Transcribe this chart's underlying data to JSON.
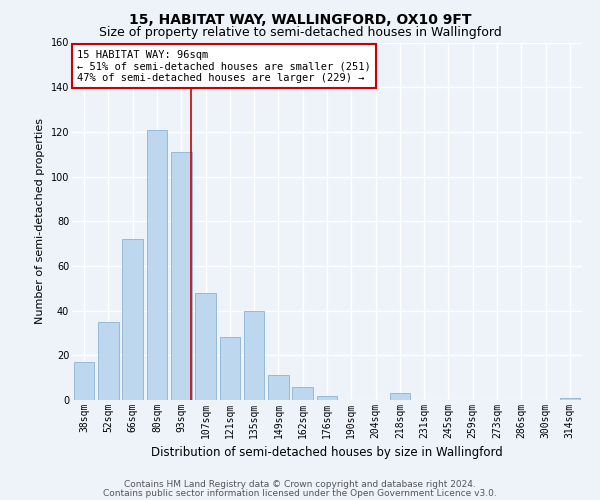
{
  "title1": "15, HABITAT WAY, WALLINGFORD, OX10 9FT",
  "title2": "Size of property relative to semi-detached houses in Wallingford",
  "xlabel": "Distribution of semi-detached houses by size in Wallingford",
  "ylabel": "Number of semi-detached properties",
  "categories": [
    "38sqm",
    "52sqm",
    "66sqm",
    "80sqm",
    "93sqm",
    "107sqm",
    "121sqm",
    "135sqm",
    "149sqm",
    "162sqm",
    "176sqm",
    "190sqm",
    "204sqm",
    "218sqm",
    "231sqm",
    "245sqm",
    "259sqm",
    "273sqm",
    "286sqm",
    "300sqm",
    "314sqm"
  ],
  "values": [
    17,
    35,
    72,
    121,
    111,
    48,
    28,
    40,
    11,
    6,
    2,
    0,
    0,
    3,
    0,
    0,
    0,
    0,
    0,
    0,
    1
  ],
  "bar_color": "#bdd7ee",
  "bar_edge_color": "#8ab4d4",
  "annotation_text": "15 HABITAT WAY: 96sqm\n← 51% of semi-detached houses are smaller (251)\n47% of semi-detached houses are larger (229) →",
  "box_color": "#ffffff",
  "box_edge_color": "#cc0000",
  "line_color": "#cc0000",
  "background_color": "#eef2f9",
  "grid_color": "#ffffff",
  "ylim": [
    0,
    160
  ],
  "yticks": [
    0,
    20,
    40,
    60,
    80,
    100,
    120,
    140,
    160
  ],
  "property_line_x": 4.42,
  "footer1": "Contains HM Land Registry data © Crown copyright and database right 2024.",
  "footer2": "Contains public sector information licensed under the Open Government Licence v3.0.",
  "title1_fontsize": 10,
  "title2_fontsize": 9,
  "xlabel_fontsize": 8.5,
  "ylabel_fontsize": 8,
  "tick_fontsize": 7,
  "footer_fontsize": 6.5,
  "annotation_fontsize": 7.5
}
